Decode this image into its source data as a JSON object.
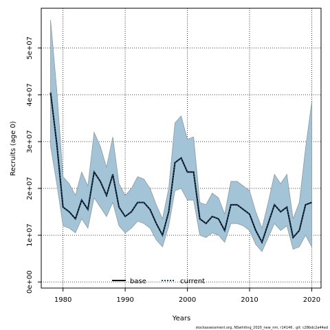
{
  "chart_data": {
    "type": "line",
    "xlabel": "Years",
    "ylabel": "Recruits (age 0)",
    "xlim": [
      1976.5,
      2021.5
    ],
    "ylim": [
      -1300000,
      58500000
    ],
    "x_ticks": [
      1980,
      1990,
      2000,
      2010,
      2020
    ],
    "y_ticks": [
      0,
      10000000,
      20000000,
      30000000,
      40000000,
      50000000
    ],
    "y_tick_labels": [
      "0e+00",
      "1e+07",
      "2e+07",
      "3e+07",
      "4e+07",
      "5e+07"
    ],
    "grid": true,
    "band_color": "#a3c4d6",
    "band_edge_color": "#8a9aa5",
    "legend": {
      "position": "bottom-center",
      "items": [
        {
          "label": "base",
          "style": "solid",
          "color": "#000000"
        },
        {
          "label": "current",
          "style": "dotted",
          "color": "#1a4a6b"
        }
      ]
    },
    "x": [
      1978,
      1979,
      1980,
      1981,
      1982,
      1983,
      1984,
      1985,
      1986,
      1987,
      1988,
      1989,
      1990,
      1991,
      1992,
      1993,
      1994,
      1995,
      1996,
      1997,
      1998,
      1999,
      2000,
      2001,
      2002,
      2003,
      2004,
      2005,
      2006,
      2007,
      2008,
      2009,
      2010,
      2011,
      2012,
      2013,
      2014,
      2015,
      2016,
      2017,
      2018,
      2019,
      2020
    ],
    "series": [
      {
        "name": "base",
        "values": [
          40500000,
          29500000,
          16000000,
          15000000,
          13500000,
          17500000,
          15500000,
          23500000,
          21500000,
          18500000,
          23000000,
          16000000,
          14000000,
          15000000,
          17000000,
          17000000,
          15500000,
          12500000,
          10000000,
          15000000,
          25500000,
          26500000,
          23500000,
          23500000,
          13500000,
          12500000,
          14000000,
          13500000,
          11000000,
          16500000,
          16500000,
          15500000,
          14500000,
          11000000,
          8500000,
          12500000,
          16500000,
          15000000,
          16000000,
          9500000,
          11000000,
          16500000,
          17000000
        ]
      },
      {
        "name": "current",
        "values": [
          40500000,
          29500000,
          16000000,
          15000000,
          13500000,
          17500000,
          15500000,
          23500000,
          21500000,
          18500000,
          23000000,
          16000000,
          14000000,
          15000000,
          17000000,
          17000000,
          15500000,
          12500000,
          10000000,
          15000000,
          25500000,
          26500000,
          23500000,
          23500000,
          13500000,
          12500000,
          14000000,
          13500000,
          11000000,
          16500000,
          16500000,
          15500000,
          14500000,
          11000000,
          8500000,
          12500000,
          16500000,
          15000000,
          16000000,
          9500000,
          11000000,
          16500000,
          17000000
        ]
      }
    ],
    "band": {
      "upper": [
        56000000,
        41000000,
        22500000,
        21000000,
        18500000,
        23500000,
        20500000,
        32000000,
        29000000,
        24500000,
        31000000,
        21000000,
        18500000,
        20000000,
        22500000,
        22000000,
        20000000,
        16500000,
        13500000,
        20000000,
        34000000,
        35500000,
        30500000,
        31000000,
        17000000,
        16500000,
        19000000,
        18000000,
        14500000,
        21500000,
        21500000,
        20500000,
        19500000,
        15000000,
        11500000,
        17000000,
        23000000,
        21000000,
        23000000,
        13500000,
        17000000,
        28500000,
        38500000
      ],
      "lower": [
        29000000,
        21000000,
        12000000,
        11500000,
        10500000,
        13500000,
        11500000,
        18000000,
        16000000,
        14000000,
        17000000,
        12000000,
        10500000,
        11500000,
        13000000,
        12500000,
        11500000,
        9000000,
        7500000,
        12000000,
        19500000,
        20000000,
        17500000,
        17500000,
        10000000,
        9500000,
        10500000,
        10000000,
        8500000,
        12500000,
        12500000,
        12000000,
        11000000,
        8000000,
        6500000,
        9500000,
        12500000,
        11000000,
        12000000,
        7000000,
        7500000,
        10000000,
        7500000
      ]
    }
  },
  "footer_text": "stockassessment.org, NSwhiting_2020_new_nm, r14146 , git: c28bdc2a44ad"
}
